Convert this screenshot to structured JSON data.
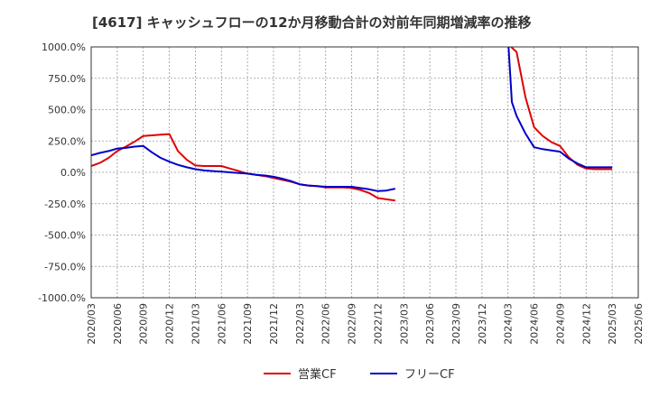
{
  "chart_data": {
    "type": "line",
    "title": "[4617]  キャッシュフローの12か月移動合計の対前年同期増減率の推移",
    "xlabel": "",
    "ylabel": "",
    "ylim": [
      -1000,
      1000
    ],
    "grid": true,
    "legend_position": "bottom-center",
    "y_ticks": [
      1000,
      750,
      500,
      250,
      0,
      -250,
      -500,
      -750,
      -1000
    ],
    "y_tick_labels": [
      "1000.0%",
      "750.0%",
      "500.0%",
      "250.0%",
      "0.0%",
      "-250.0%",
      "-500.0%",
      "-750.0%",
      "-1000.0%"
    ],
    "x_tick_labels": [
      "2020/03",
      "2020/06",
      "2020/09",
      "2020/12",
      "2021/03",
      "2021/06",
      "2021/09",
      "2021/12",
      "2022/03",
      "2022/06",
      "2022/09",
      "2022/12",
      "2023/03",
      "2023/06",
      "2023/09",
      "2023/12",
      "2024/03",
      "2024/06",
      "2024/09",
      "2024/12",
      "2025/03",
      "2025/06"
    ],
    "series": [
      {
        "name": "営業CF",
        "color": "#e00000",
        "points": [
          [
            0,
            50
          ],
          [
            0.33,
            75
          ],
          [
            0.67,
            115
          ],
          [
            1,
            170
          ],
          [
            1.33,
            205
          ],
          [
            1.67,
            245
          ],
          [
            2,
            290
          ],
          [
            2.33,
            295
          ],
          [
            2.67,
            300
          ],
          [
            3,
            305
          ],
          [
            3.33,
            170
          ],
          [
            3.67,
            100
          ],
          [
            4,
            55
          ],
          [
            4.33,
            50
          ],
          [
            4.67,
            50
          ],
          [
            5,
            50
          ],
          [
            5.33,
            30
          ],
          [
            5.67,
            10
          ],
          [
            6,
            -10
          ],
          [
            6.33,
            -20
          ],
          [
            6.67,
            -30
          ],
          [
            7,
            -45
          ],
          [
            7.33,
            -60
          ],
          [
            7.67,
            -75
          ],
          [
            8,
            -95
          ],
          [
            8.33,
            -105
          ],
          [
            8.67,
            -110
          ],
          [
            9,
            -120
          ],
          [
            9.33,
            -120
          ],
          [
            9.67,
            -120
          ],
          [
            10,
            -125
          ],
          [
            10.33,
            -140
          ],
          [
            10.67,
            -165
          ],
          [
            11,
            -205
          ],
          [
            11.33,
            -215
          ],
          [
            11.67,
            -225
          ],
          null,
          [
            16.12,
            1000
          ],
          [
            16.33,
            960
          ],
          [
            16.67,
            600
          ],
          [
            17,
            360
          ],
          [
            17.33,
            290
          ],
          [
            17.67,
            240
          ],
          [
            18,
            210
          ],
          [
            18.33,
            120
          ],
          [
            18.67,
            60
          ],
          [
            19,
            30
          ],
          [
            19.33,
            25
          ],
          [
            19.67,
            25
          ],
          [
            20,
            25
          ]
        ]
      },
      {
        "name": "フリーCF",
        "color": "#0000cc",
        "points": [
          [
            0,
            135
          ],
          [
            0.33,
            155
          ],
          [
            0.67,
            170
          ],
          [
            1,
            190
          ],
          [
            1.33,
            195
          ],
          [
            1.67,
            205
          ],
          [
            2,
            210
          ],
          [
            2.33,
            160
          ],
          [
            2.67,
            115
          ],
          [
            3,
            85
          ],
          [
            3.33,
            60
          ],
          [
            3.67,
            40
          ],
          [
            4,
            25
          ],
          [
            4.33,
            15
          ],
          [
            4.67,
            10
          ],
          [
            5,
            5
          ],
          [
            5.33,
            0
          ],
          [
            5.67,
            -5
          ],
          [
            6,
            -10
          ],
          [
            6.33,
            -20
          ],
          [
            6.67,
            -25
          ],
          [
            7,
            -35
          ],
          [
            7.33,
            -50
          ],
          [
            7.67,
            -70
          ],
          [
            8,
            -95
          ],
          [
            8.33,
            -105
          ],
          [
            8.67,
            -110
          ],
          [
            9,
            -115
          ],
          [
            9.33,
            -115
          ],
          [
            9.67,
            -115
          ],
          [
            10,
            -115
          ],
          [
            10.33,
            -125
          ],
          [
            10.67,
            -135
          ],
          [
            11,
            -150
          ],
          [
            11.33,
            -145
          ],
          [
            11.67,
            -130
          ],
          null,
          [
            16.02,
            1000
          ],
          [
            16.15,
            560
          ],
          [
            16.33,
            450
          ],
          [
            16.67,
            310
          ],
          [
            17,
            200
          ],
          [
            17.33,
            185
          ],
          [
            17.67,
            175
          ],
          [
            18,
            165
          ],
          [
            18.33,
            110
          ],
          [
            18.67,
            70
          ],
          [
            19,
            40
          ],
          [
            19.33,
            40
          ],
          [
            19.67,
            40
          ],
          [
            20,
            40
          ]
        ]
      }
    ]
  }
}
